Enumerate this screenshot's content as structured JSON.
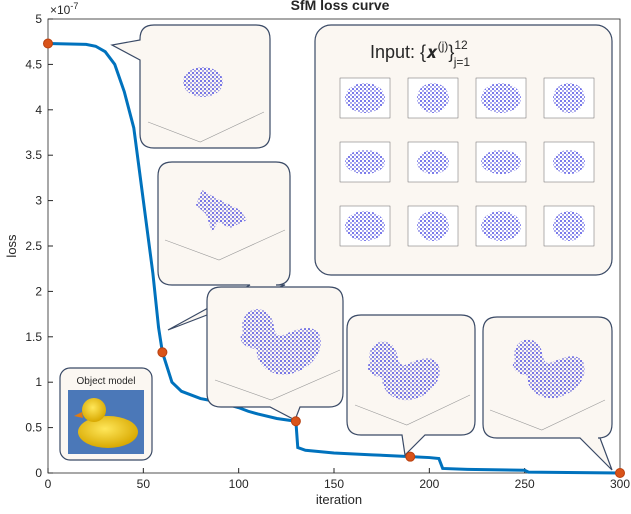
{
  "chart_data": {
    "type": "line",
    "title": "SfM loss curve",
    "xlabel": "iteration",
    "ylabel": "loss",
    "y_multiplier": "×10",
    "y_multiplier_exponent": "-7",
    "xlim": [
      0,
      300
    ],
    "xticks": [
      0,
      50,
      100,
      150,
      200,
      250,
      300
    ],
    "ylim": [
      0,
      5
    ],
    "yticks": [
      0,
      0.5,
      1,
      1.5,
      2,
      2.5,
      3,
      3.5,
      4,
      4.5,
      5
    ],
    "color": "#0072bd",
    "x": [
      0,
      20,
      25,
      30,
      35,
      40,
      45,
      50,
      55,
      58,
      60,
      65,
      70,
      80,
      85,
      90,
      100,
      105,
      110,
      120,
      130,
      131,
      135,
      150,
      170,
      190,
      200,
      205,
      207,
      220,
      250,
      252,
      300
    ],
    "values": [
      4.73,
      4.72,
      4.7,
      4.64,
      4.5,
      4.2,
      3.8,
      3.0,
      2.2,
      1.6,
      1.33,
      1.0,
      0.9,
      0.82,
      0.8,
      0.78,
      0.72,
      0.68,
      0.65,
      0.6,
      0.57,
      0.28,
      0.25,
      0.22,
      0.2,
      0.18,
      0.17,
      0.16,
      0.05,
      0.04,
      0.03,
      0.01,
      0.0
    ],
    "highlight_color": "#d95319",
    "highlight_x": [
      0,
      60,
      130,
      190,
      300
    ],
    "highlight_values": [
      4.73,
      1.33,
      0.57,
      0.18,
      0.0
    ],
    "input_label": {
      "prefix": "Input: ",
      "main": "{𝒙",
      "sup": "(j)",
      "close": "}",
      "upper": "12",
      "lower": "j=1"
    },
    "object_model_label": "Object model"
  }
}
